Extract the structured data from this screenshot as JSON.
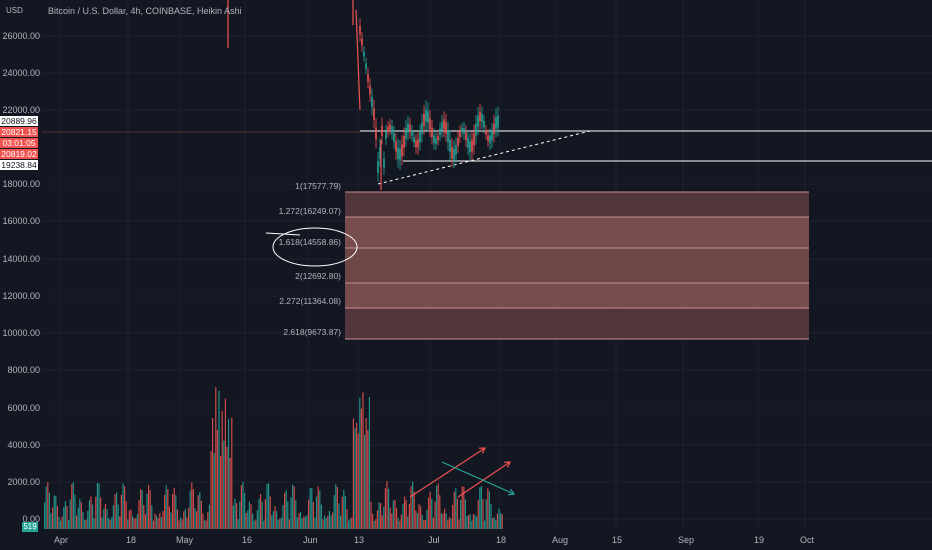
{
  "header": {
    "currency": "USD",
    "title": "Bitcoin / U.S. Dollar, 4h, COINBASE, Heikin Ashi"
  },
  "price_axis": {
    "labels": [
      "26000.00",
      "24000.00",
      "22000.00",
      "18000.00",
      "16000.00",
      "14000.00",
      "12000.00",
      "10000.00",
      "8000.00",
      "6000.00",
      "4000.00",
      "2000.00",
      "0.00"
    ]
  },
  "price_tags": {
    "tag1": "20889.96",
    "tag2": "20821.15",
    "tag3": "03:01:05",
    "tag4": "20819.02",
    "tag5": "19238.84"
  },
  "volume_badge": "519",
  "time_axis": {
    "labels": [
      "Apr",
      "18",
      "May",
      "16",
      "Jun",
      "13",
      "Jul",
      "18",
      "Aug",
      "15",
      "Sep",
      "19",
      "Oct"
    ]
  },
  "fib_levels": [
    {
      "label": "1(17577.79)"
    },
    {
      "label": "1.272(16249.07)"
    },
    {
      "label": "1.618(14558.86)"
    },
    {
      "label": "2(12692.80)"
    },
    {
      "label": "2.272(11364.08)"
    },
    {
      "label": "2.618(9673.87)"
    }
  ],
  "colors": {
    "background": "#131722",
    "up": "#26a69a",
    "down": "#ef5350",
    "fib_fill": "#c06c6c",
    "text": "#b2b5be"
  }
}
